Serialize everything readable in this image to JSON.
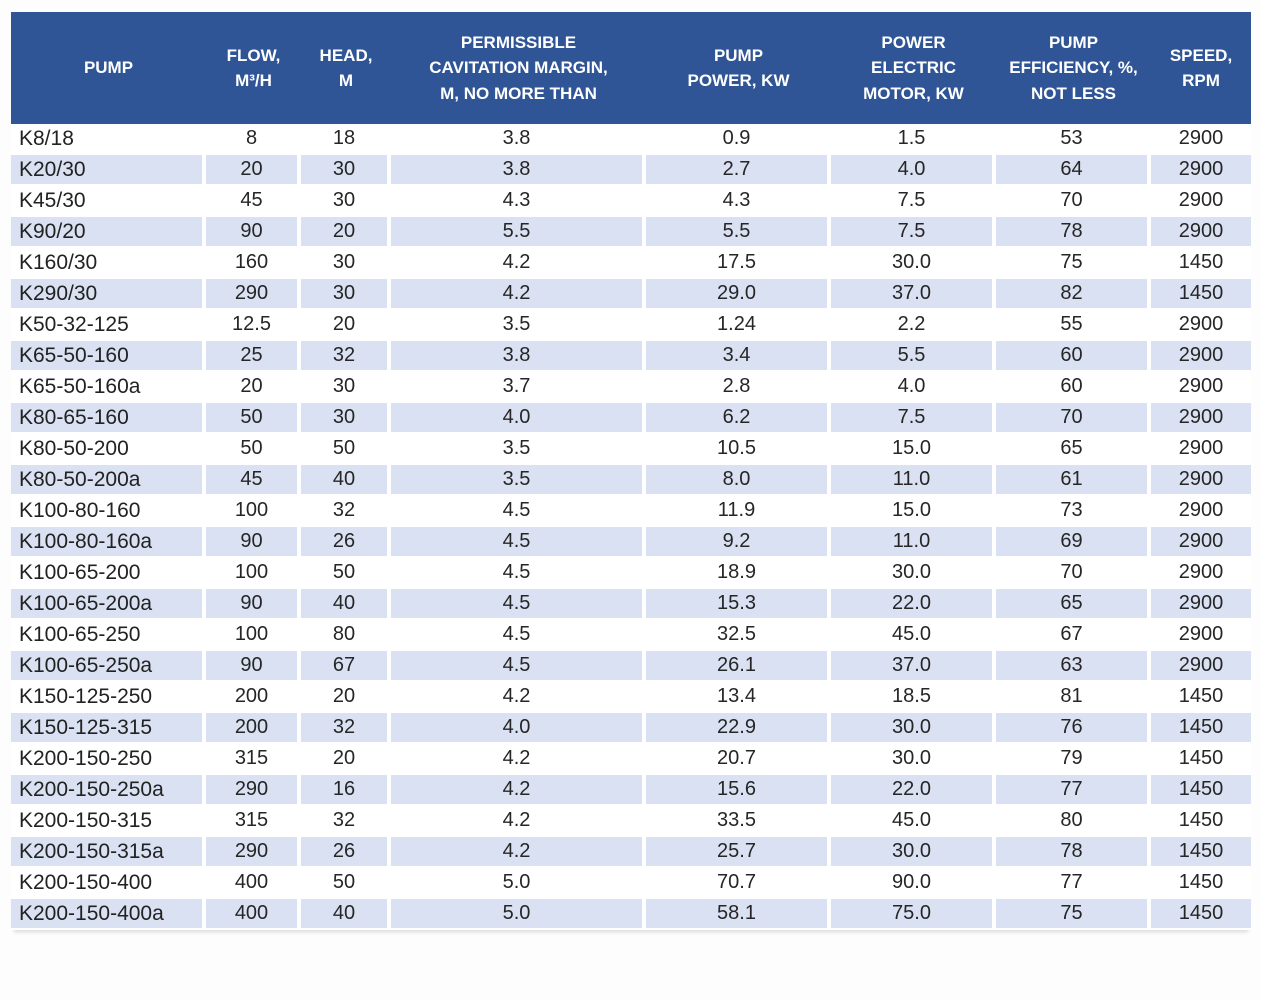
{
  "colors": {
    "header_background": "#2F5597",
    "header_text": "#FFFFFF",
    "row_band": "#D9E1F2",
    "row_plain": "#FFFFFF",
    "body_text": "#262626"
  },
  "chart_data": {
    "type": "table",
    "title": "",
    "columns": [
      {
        "key": "pump",
        "label": "PUMP"
      },
      {
        "key": "flow",
        "label": "FLOW,\nM³/H"
      },
      {
        "key": "head",
        "label": "HEAD,\nM"
      },
      {
        "key": "cavitation",
        "label": "PERMISSIBLE\nCAVITATION MARGIN,\nM, NO MORE THAN"
      },
      {
        "key": "pump-power",
        "label": "PUMP\nPOWER, KW"
      },
      {
        "key": "motor-power",
        "label": "POWER\nELECTRIC\nMOTOR, KW"
      },
      {
        "key": "efficiency",
        "label": "PUMP\nEFFICIENCY, %,\nNOT LESS"
      },
      {
        "key": "speed",
        "label": "SPEED,\nRPM"
      }
    ],
    "rows": [
      [
        "K8/18",
        "8",
        "18",
        "3.8",
        "0.9",
        "1.5",
        "53",
        "2900"
      ],
      [
        "K20/30",
        "20",
        "30",
        "3.8",
        "2.7",
        "4.0",
        "64",
        "2900"
      ],
      [
        "K45/30",
        "45",
        "30",
        "4.3",
        "4.3",
        "7.5",
        "70",
        "2900"
      ],
      [
        "K90/20",
        "90",
        "20",
        "5.5",
        "5.5",
        "7.5",
        "78",
        "2900"
      ],
      [
        "K160/30",
        "160",
        "30",
        "4.2",
        "17.5",
        "30.0",
        "75",
        "1450"
      ],
      [
        "K290/30",
        "290",
        "30",
        "4.2",
        "29.0",
        "37.0",
        "82",
        "1450"
      ],
      [
        "K50-32-125",
        "12.5",
        "20",
        "3.5",
        "1.24",
        "2.2",
        "55",
        "2900"
      ],
      [
        "K65-50-160",
        "25",
        "32",
        "3.8",
        "3.4",
        "5.5",
        "60",
        "2900"
      ],
      [
        "K65-50-160a",
        "20",
        "30",
        "3.7",
        "2.8",
        "4.0",
        "60",
        "2900"
      ],
      [
        "K80-65-160",
        "50",
        "30",
        "4.0",
        "6.2",
        "7.5",
        "70",
        "2900"
      ],
      [
        "K80-50-200",
        "50",
        "50",
        "3.5",
        "10.5",
        "15.0",
        "65",
        "2900"
      ],
      [
        "K80-50-200a",
        "45",
        "40",
        "3.5",
        "8.0",
        "11.0",
        "61",
        "2900"
      ],
      [
        "K100-80-160",
        "100",
        "32",
        "4.5",
        "11.9",
        "15.0",
        "73",
        "2900"
      ],
      [
        "K100-80-160a",
        "90",
        "26",
        "4.5",
        "9.2",
        "11.0",
        "69",
        "2900"
      ],
      [
        "K100-65-200",
        "100",
        "50",
        "4.5",
        "18.9",
        "30.0",
        "70",
        "2900"
      ],
      [
        "K100-65-200a",
        "90",
        "40",
        "4.5",
        "15.3",
        "22.0",
        "65",
        "2900"
      ],
      [
        "K100-65-250",
        "100",
        "80",
        "4.5",
        "32.5",
        "45.0",
        "67",
        "2900"
      ],
      [
        "K100-65-250a",
        "90",
        "67",
        "4.5",
        "26.1",
        "37.0",
        "63",
        "2900"
      ],
      [
        "K150-125-250",
        "200",
        "20",
        "4.2",
        "13.4",
        "18.5",
        "81",
        "1450"
      ],
      [
        "K150-125-315",
        "200",
        "32",
        "4.0",
        "22.9",
        "30.0",
        "76",
        "1450"
      ],
      [
        "K200-150-250",
        "315",
        "20",
        "4.2",
        "20.7",
        "30.0",
        "79",
        "1450"
      ],
      [
        "K200-150-250a",
        "290",
        "16",
        "4.2",
        "15.6",
        "22.0",
        "77",
        "1450"
      ],
      [
        "K200-150-315",
        "315",
        "32",
        "4.2",
        "33.5",
        "45.0",
        "80",
        "1450"
      ],
      [
        "K200-150-315a",
        "290",
        "26",
        "4.2",
        "25.7",
        "30.0",
        "78",
        "1450"
      ],
      [
        "K200-150-400",
        "400",
        "50",
        "5.0",
        "70.7",
        "90.0",
        "77",
        "1450"
      ],
      [
        "K200-150-400a",
        "400",
        "40",
        "5.0",
        "58.1",
        "75.0",
        "75",
        "1450"
      ]
    ]
  }
}
